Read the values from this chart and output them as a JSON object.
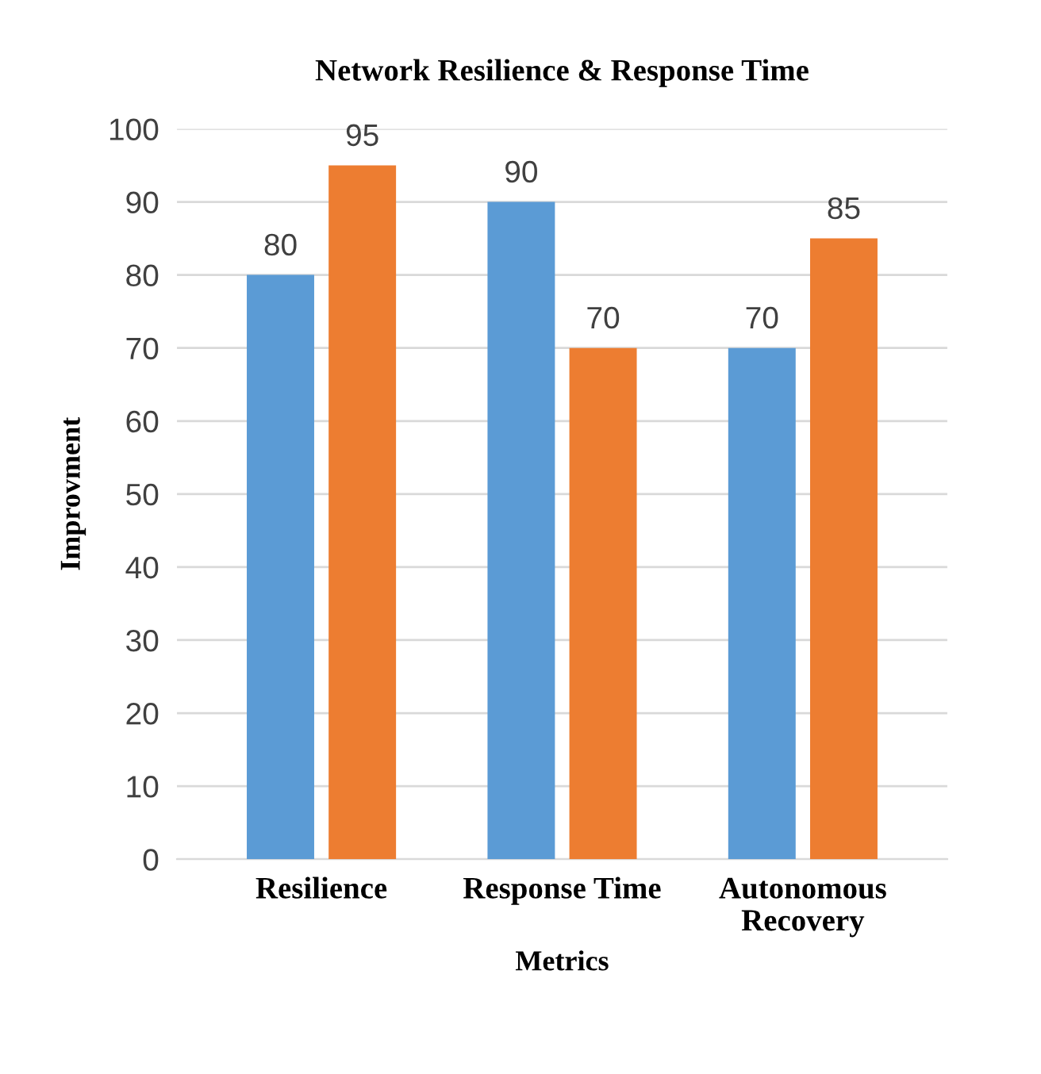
{
  "chart_data": {
    "type": "bar",
    "title": "Network Resilience & Response Time",
    "xlabel": "Metrics",
    "ylabel": "Improvment",
    "categories": [
      "Resilience",
      "Response Time",
      "Autonomous Recovery"
    ],
    "series": [
      {
        "color": "#5b9bd5",
        "values": [
          80,
          90,
          70
        ]
      },
      {
        "color": "#ed7d31",
        "values": [
          95,
          70,
          85
        ]
      }
    ],
    "ylim": [
      0,
      100
    ],
    "yticks": [
      0,
      10,
      20,
      30,
      40,
      50,
      60,
      70,
      80,
      90,
      100
    ],
    "grid": "y",
    "data_labels": true
  }
}
